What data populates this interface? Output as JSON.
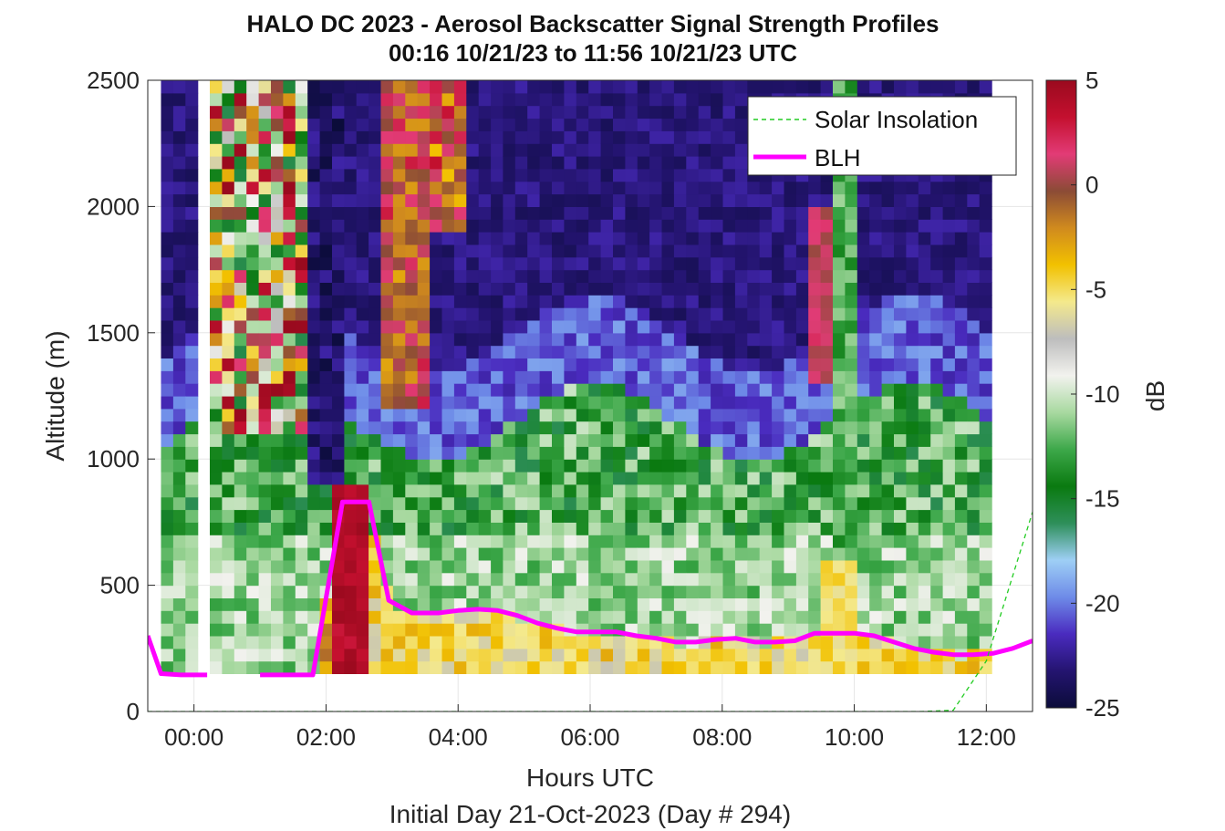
{
  "chart_data": {
    "type": "heatmap",
    "title": "HALO DC 2023 - Aerosol Backscatter Signal Strength Profiles",
    "subtitle": "00:16 10/21/23 to 11:56 10/21/23  UTC",
    "xlabel": "Hours UTC",
    "x_sublabel": "Initial Day 21-Oct-2023 (Day # 294)",
    "ylabel": "Altitude (m)",
    "xlim": [
      -0.7,
      12.7
    ],
    "ylim": [
      0,
      2500
    ],
    "x_ticks": [
      0,
      2,
      4,
      6,
      8,
      10,
      12
    ],
    "x_tick_labels": [
      "00:00",
      "02:00",
      "04:00",
      "06:00",
      "08:00",
      "10:00",
      "12:00"
    ],
    "y_ticks": [
      0,
      500,
      1000,
      1500,
      2000,
      2500
    ],
    "y_tick_labels": [
      "0",
      "500",
      "1000",
      "1500",
      "2000",
      "2500"
    ],
    "grid": true,
    "colorbar": {
      "label": "dB",
      "range": [
        -25,
        5
      ],
      "ticks": [
        -25,
        -20,
        -15,
        -10,
        -5,
        0,
        5
      ],
      "tick_labels": [
        "-25",
        "-20",
        "-15",
        "-10",
        "-5",
        "0",
        "5"
      ],
      "colormap_stops": [
        "#0b0c3a",
        "#241470",
        "#4a2bbf",
        "#6e8be8",
        "#9ecff5",
        "#2e8f5a",
        "#0a7a10",
        "#3da84a",
        "#a8d9a0",
        "#f2f2ee",
        "#bdbdbd",
        "#f4e98c",
        "#f2c100",
        "#d08a1e",
        "#8b4b36",
        "#e23b76",
        "#c4102f",
        "#9a0a1e"
      ]
    },
    "legend": {
      "position": "top-right",
      "entries": [
        {
          "label": "Solar Insolation",
          "color": "#22cc22",
          "style": "dashed"
        },
        {
          "label": "BLH",
          "color": "#ff00ff",
          "style": "solid"
        }
      ]
    },
    "series": [
      {
        "name": "BLH",
        "color": "#ff00ff",
        "x": [
          -0.7,
          -0.5,
          -0.2,
          0.2,
          0.6,
          1.0,
          1.8,
          2.25,
          2.45,
          2.65,
          2.95,
          3.3,
          3.7,
          4.0,
          4.3,
          4.6,
          4.9,
          5.2,
          5.5,
          5.8,
          6.1,
          6.4,
          6.7,
          7.0,
          7.3,
          7.6,
          7.9,
          8.2,
          8.5,
          8.8,
          9.1,
          9.4,
          9.7,
          10.0,
          10.3,
          10.6,
          10.9,
          11.2,
          11.5,
          11.8,
          12.1,
          12.4,
          12.7
        ],
        "y": [
          300,
          150,
          145,
          145,
          null,
          145,
          145,
          830,
          830,
          830,
          440,
          390,
          390,
          400,
          405,
          400,
          380,
          350,
          330,
          315,
          315,
          315,
          300,
          290,
          275,
          275,
          285,
          290,
          275,
          275,
          280,
          310,
          310,
          310,
          300,
          275,
          250,
          235,
          225,
          225,
          230,
          250,
          280
        ]
      },
      {
        "name": "Solar Insolation",
        "color": "#22cc22",
        "x": [
          -0.7,
          11.0,
          11.5,
          12.0,
          12.7
        ],
        "y": [
          0,
          0,
          5,
          200,
          790
        ]
      }
    ],
    "heatmap": {
      "x_start": -0.5,
      "x_end": 11.9,
      "y_start": 150,
      "y_end": 2500
    }
  }
}
